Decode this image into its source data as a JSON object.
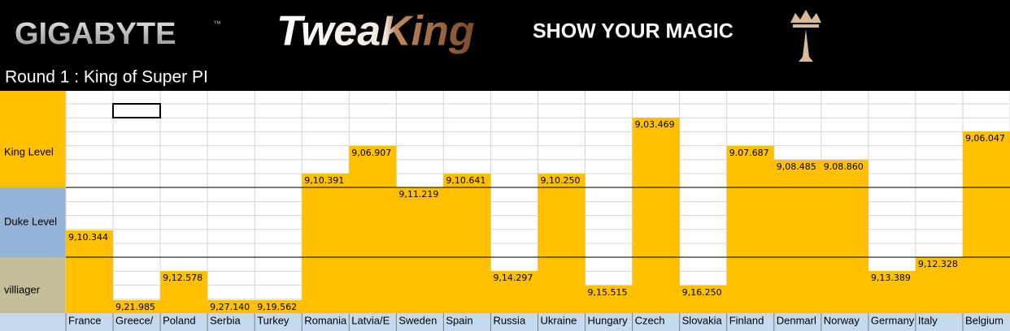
{
  "header": {
    "brand": "GIGABYTE",
    "trademark": "™",
    "event": "TweaKing",
    "slogan": "SHOW YOUR MAGIC",
    "round_title": "Round 1 : King of Super PI"
  },
  "levels": [
    "King Level",
    "Duke Level",
    "villiager"
  ],
  "countries": [
    {
      "name": "France",
      "time": "9,10.344"
    },
    {
      "name": "Greece/",
      "time": "9,21.985"
    },
    {
      "name": "Poland",
      "time": "9,12.578"
    },
    {
      "name": "Serbia",
      "time": "9,27.140"
    },
    {
      "name": "Turkey",
      "time": "9,19.562"
    },
    {
      "name": "Romania",
      "time": "9,10.391"
    },
    {
      "name": "Latvia/E",
      "time": "9,06.907"
    },
    {
      "name": "Sweden",
      "time": "9,11.219"
    },
    {
      "name": "Spain",
      "time": "9,10.641"
    },
    {
      "name": "Russia",
      "time": "9,14.297"
    },
    {
      "name": "Ukraine",
      "time": "9,10.250"
    },
    {
      "name": "Hungary",
      "time": "9,15.515"
    },
    {
      "name": "Czech",
      "time": "9,03.469"
    },
    {
      "name": "Slovakia",
      "time": "9,16.250"
    },
    {
      "name": "Finland",
      "time": "9.07.687"
    },
    {
      "name": "Denmarl",
      "time": "9,08.485"
    },
    {
      "name": "Norway",
      "time": "9.08.860"
    },
    {
      "name": "Germany",
      "time": "9,13.389"
    },
    {
      "name": "Italy",
      "time": "9,12.328"
    },
    {
      "name": "Belgium",
      "time": "9,06.047"
    }
  ]
}
